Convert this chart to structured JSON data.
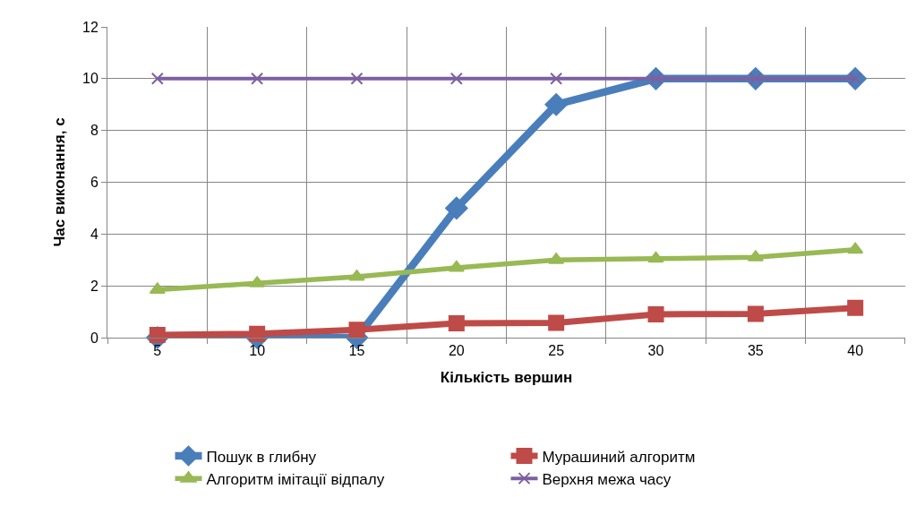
{
  "chart_data": {
    "type": "line",
    "xlabel": "Кількість вершин",
    "ylabel": "Час виконання, с",
    "categories": [
      "5",
      "10",
      "15",
      "20",
      "25",
      "30",
      "35",
      "40"
    ],
    "series": [
      {
        "name": "Пошук в глибну",
        "color": "#4a7ebb",
        "marker": "diamond",
        "values": [
          0,
          0,
          0,
          5,
          9,
          10,
          10,
          10
        ]
      },
      {
        "name": "Мурашиний алгоритм",
        "color": "#be4b48",
        "marker": "square",
        "values": [
          0.1,
          0.15,
          0.3,
          0.55,
          0.57,
          0.9,
          0.92,
          1.15
        ]
      },
      {
        "name": "Алгоритм імітації відпалу",
        "color": "#98b954",
        "marker": "triangle",
        "values": [
          1.85,
          2.1,
          2.35,
          2.7,
          3.0,
          3.05,
          3.1,
          3.4
        ]
      },
      {
        "name": "Верхня межа часу",
        "color": "#7d60a0",
        "marker": "cross",
        "values": [
          10,
          10,
          10,
          10,
          10,
          10,
          10,
          10
        ]
      }
    ],
    "ylim": [
      0,
      12
    ],
    "yticks": [
      0,
      2,
      4,
      6,
      8,
      10,
      12
    ],
    "grid": true,
    "legend": "bottom"
  }
}
